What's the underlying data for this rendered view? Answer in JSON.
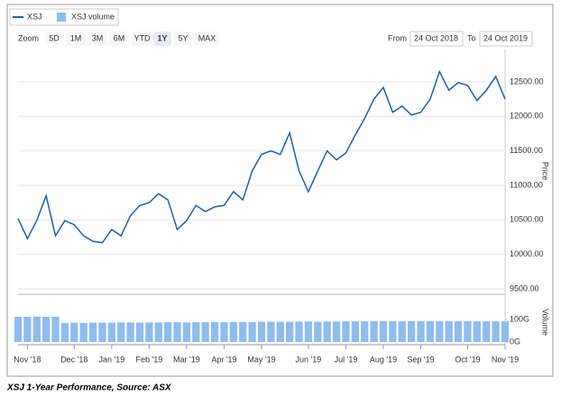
{
  "chart_data": {
    "type": "line",
    "legend": "top-left",
    "grid": true,
    "categories": [
      null,
      "Nov '18",
      null,
      null,
      null,
      null,
      "Dec '18",
      null,
      null,
      null,
      "Jan '19",
      null,
      null,
      null,
      "Feb '19",
      null,
      null,
      null,
      "Mar '19",
      null,
      null,
      null,
      "Apr '19",
      null,
      null,
      null,
      "May '19",
      null,
      null,
      null,
      null,
      "Jun '19",
      null,
      null,
      null,
      "Jul '19",
      null,
      null,
      null,
      "Aug '19",
      null,
      null,
      null,
      "Sep '19",
      null,
      null,
      null,
      null,
      "Oct '19",
      null,
      null,
      null,
      "Nov '19"
    ],
    "series": [
      {
        "name": "XSJ",
        "color": "#1f5fa6",
        "values": [
          10520,
          10230,
          10490,
          10850,
          10270,
          10490,
          10430,
          10270,
          10190,
          10170,
          10360,
          10270,
          10560,
          10710,
          10750,
          10880,
          10790,
          10360,
          10490,
          10710,
          10620,
          10690,
          10710,
          10910,
          10790,
          11210,
          11450,
          11500,
          11450,
          11760,
          11210,
          10910,
          11210,
          11500,
          11370,
          11470,
          11730,
          11970,
          12250,
          12420,
          12060,
          12150,
          12020,
          12060,
          12250,
          12650,
          12380,
          12490,
          12450,
          12230,
          12380,
          12580,
          12250
        ]
      },
      {
        "name": "XSJ volume",
        "color": "#8fbcee",
        "axis": "y2",
        "values": [
          112,
          112,
          113,
          112,
          112,
          85,
          86,
          85,
          86,
          86,
          86,
          87,
          87,
          86,
          87,
          87,
          88,
          88,
          87,
          88,
          88,
          89,
          88,
          89,
          89,
          89,
          90,
          90,
          90,
          90,
          91,
          91,
          90,
          91,
          91,
          92,
          92,
          92,
          93,
          93,
          93,
          92,
          93,
          93,
          93,
          92,
          93,
          93,
          93,
          92,
          92,
          92,
          92
        ]
      }
    ],
    "ylim": [
      9500,
      12970
    ],
    "yticks": [
      {
        "value": 9500,
        "label": "9500.00"
      },
      {
        "value": 10000,
        "label": "10000.00"
      },
      {
        "value": 10500,
        "label": "10500.00"
      },
      {
        "value": 11000,
        "label": "11000.00"
      },
      {
        "value": 11500,
        "label": "11500.00"
      },
      {
        "value": 12000,
        "label": "12000.00"
      },
      {
        "value": 12500,
        "label": "12500.00"
      }
    ],
    "ylabel": "Price",
    "y2lim": [
      0,
      188
    ],
    "y2ticks": [
      {
        "value": 0,
        "label": "0G"
      },
      {
        "value": 100,
        "label": "100G"
      }
    ],
    "y2label": "Volume"
  },
  "zoom": {
    "label": "Zoom",
    "buttons": [
      "5D",
      "1M",
      "3M",
      "6M",
      "YTD",
      "1Y",
      "5Y",
      "MAX"
    ],
    "selected_index": 5
  },
  "range": {
    "from_label": "From",
    "from": "24 Oct 2018",
    "to_label": "To",
    "to": "24 Oct 2019"
  },
  "caption": "XSJ 1-Year Performance, Source: ASX"
}
